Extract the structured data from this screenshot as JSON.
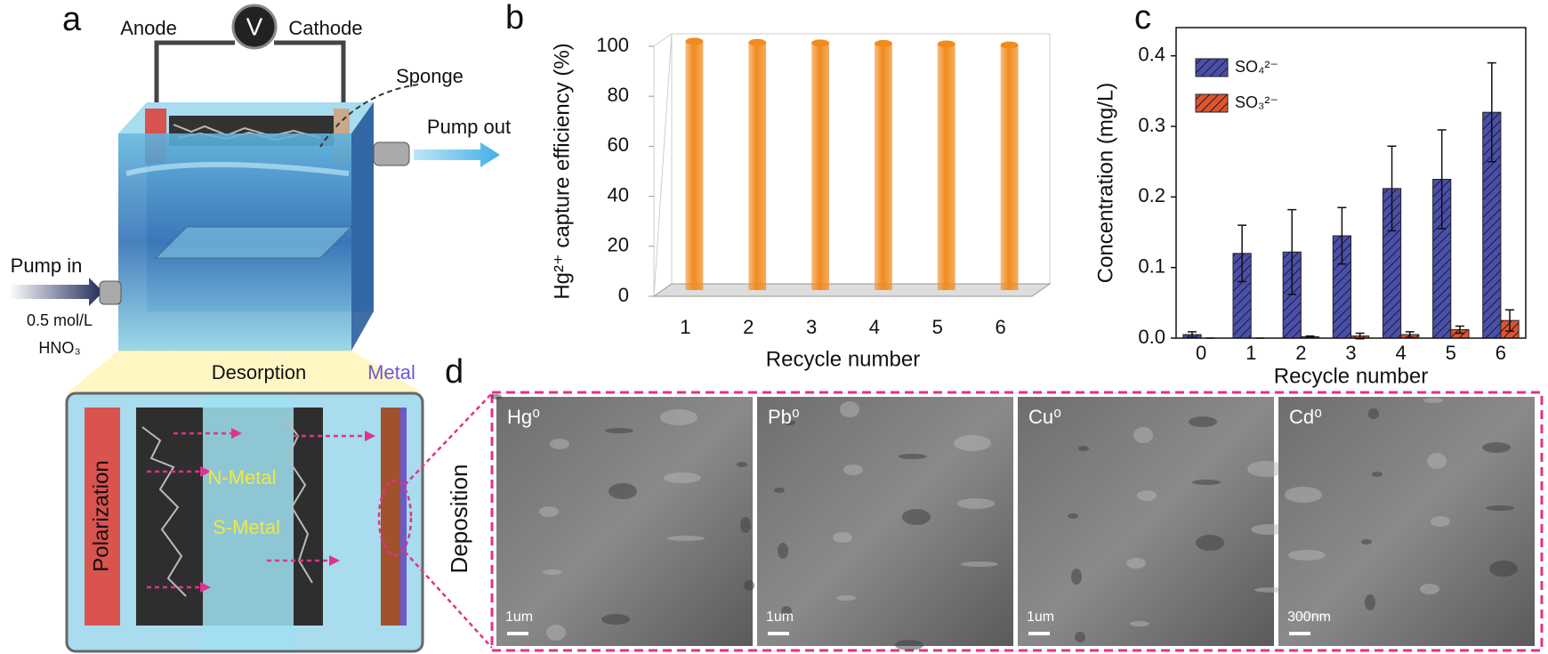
{
  "panel_labels": {
    "a": "a",
    "b": "b",
    "c": "c",
    "d": "d"
  },
  "diagram": {
    "voltmeter": "V",
    "anode": "Anode",
    "cathode": "Cathode",
    "sponge": "Sponge",
    "pump_out": "Pump out",
    "pump_in": "Pump in",
    "concentration": "0.5 mol/L",
    "acid": "HNO₃",
    "desorption": "Desorption",
    "metal": "Metal",
    "polarization": "Polarization",
    "n_metal": "N-Metal",
    "s_metal": "S-Metal"
  },
  "chart_data": [
    {
      "type": "bar3d",
      "ylabel": "Hg²⁺ capture efficiency (%)",
      "xlabel": "Recycle number",
      "categories": [
        "1",
        "2",
        "3",
        "4",
        "5",
        "6"
      ],
      "values": [
        99.5,
        99,
        98.8,
        98.6,
        98.4,
        98
      ],
      "color": "#f28a1e",
      "ylim": [
        0,
        100
      ],
      "yticks": [
        0,
        20,
        40,
        60,
        80,
        100
      ],
      "grid": false
    },
    {
      "type": "bar",
      "ylabel": "Concentration (mg/L)",
      "xlabel": "Recycle number",
      "categories": [
        "0",
        "1",
        "2",
        "3",
        "4",
        "5",
        "6"
      ],
      "series": [
        {
          "name": "SO₄²⁻",
          "color": "#4a4fa8",
          "values": [
            0.005,
            0.12,
            0.122,
            0.145,
            0.212,
            0.225,
            0.32
          ],
          "errors": [
            0.004,
            0.04,
            0.06,
            0.04,
            0.06,
            0.07,
            0.07
          ]
        },
        {
          "name": "SO₃²⁻",
          "color": "#e0542c",
          "values": [
            0,
            0,
            0.002,
            0.003,
            0.005,
            0.012,
            0.025
          ],
          "errors": [
            0,
            0,
            0.001,
            0.004,
            0.004,
            0.005,
            0.015
          ]
        }
      ],
      "ylim": [
        0,
        0.44
      ],
      "yticks": [
        {
          "value": 0,
          "label": "0.0"
        },
        0.1,
        0.2,
        0.3,
        0.4
      ],
      "legend": "upper-left",
      "grid": false
    }
  ],
  "micrographs": {
    "side_label": "Deposition",
    "images": [
      {
        "label": "Hg⁰",
        "scale": "1um"
      },
      {
        "label": "Pb⁰",
        "scale": "1um"
      },
      {
        "label": "Cu⁰",
        "scale": "1um"
      },
      {
        "label": "Cd⁰",
        "scale": "300nm"
      }
    ]
  }
}
